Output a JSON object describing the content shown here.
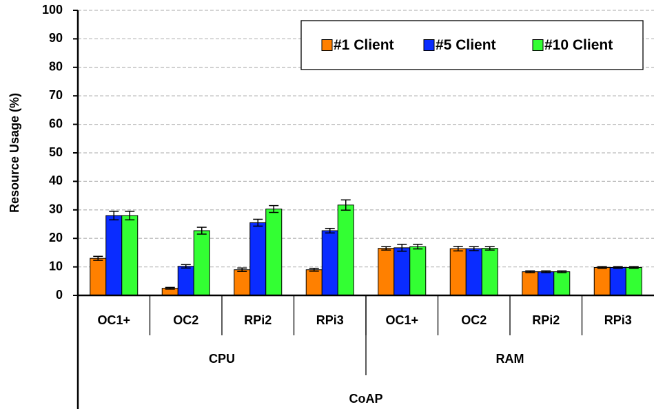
{
  "chart_data": {
    "type": "bar",
    "ylabel": "Resource Usage (%)",
    "xlabel": "CoAP",
    "categories": [
      "OC1+",
      "OC2",
      "RPi2",
      "RPi3",
      "OC1+",
      "OC2",
      "RPi2",
      "RPi3"
    ],
    "category_groups": [
      "CPU",
      "RAM"
    ],
    "series": [
      {
        "name": "#1 Client",
        "color": "#ff8000",
        "values": [
          13,
          2.5,
          9,
          9,
          16.5,
          16.4,
          8.3,
          9.8
        ],
        "errors": [
          0.7,
          0.3,
          0.6,
          0.5,
          0.6,
          0.8,
          0.3,
          0.3
        ]
      },
      {
        "name": "#5 Client",
        "color": "#0a2cff",
        "values": [
          28,
          10.2,
          25.5,
          22.7,
          16.7,
          16.4,
          8.3,
          9.8
        ],
        "errors": [
          1.5,
          0.6,
          1.2,
          0.8,
          1.2,
          0.7,
          0.3,
          0.3
        ]
      },
      {
        "name": "#10 Client",
        "color": "#33ff33",
        "values": [
          28,
          22.7,
          30.3,
          31.7,
          17.1,
          16.5,
          8.3,
          9.8
        ],
        "errors": [
          1.5,
          1.2,
          1.2,
          1.8,
          0.8,
          0.6,
          0.3,
          0.3
        ]
      }
    ],
    "ylim": [
      0,
      100
    ],
    "yticks": [
      0,
      10,
      20,
      30,
      40,
      50,
      60,
      70,
      80,
      90,
      100
    ],
    "grid": true,
    "legend": "upper right"
  }
}
